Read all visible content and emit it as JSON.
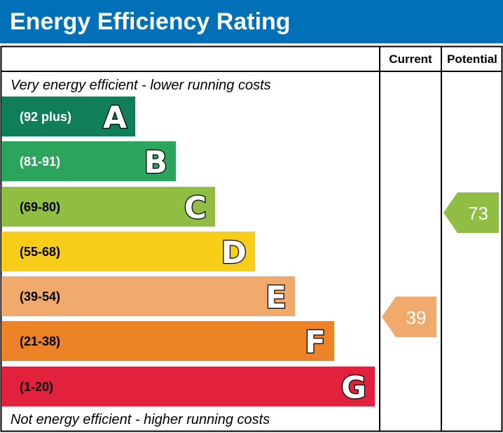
{
  "chart_data": {
    "type": "bar",
    "title": "Energy Efficiency Rating",
    "columns": [
      "Current",
      "Potential"
    ],
    "top_note": "Very energy efficient - lower running costs",
    "bottom_note": "Not energy efficient - higher running costs",
    "bands": [
      {
        "letter": "A",
        "range": "(92 plus)",
        "color": "#107f59",
        "text_color": "#ffffff"
      },
      {
        "letter": "B",
        "range": "(81-91)",
        "color": "#2ba55c",
        "text_color": "#ffffff"
      },
      {
        "letter": "C",
        "range": "(69-80)",
        "color": "#8fbe43",
        "text_color": "#000000"
      },
      {
        "letter": "D",
        "range": "(55-68)",
        "color": "#f7cd18",
        "text_color": "#000000"
      },
      {
        "letter": "E",
        "range": "(39-54)",
        "color": "#f2aa6c",
        "text_color": "#000000"
      },
      {
        "letter": "F",
        "range": "(21-38)",
        "color": "#ed8227",
        "text_color": "#000000"
      },
      {
        "letter": "G",
        "range": "(1-20)",
        "color": "#e2213c",
        "text_color": "#000000"
      }
    ],
    "current": {
      "value": "39",
      "band": "E",
      "color": "#f2aa6c"
    },
    "potential": {
      "value": "73",
      "band": "C",
      "color": "#8fbe43"
    },
    "header_color": "#0070b9"
  }
}
